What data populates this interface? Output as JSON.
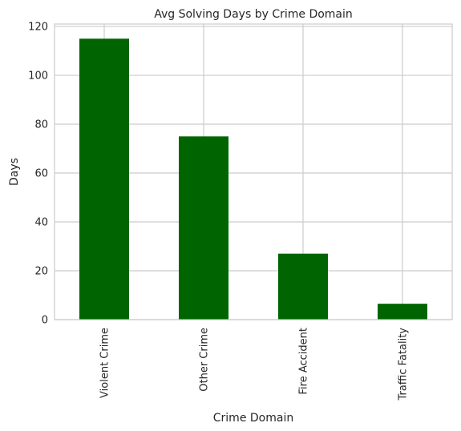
{
  "chart_data": {
    "type": "bar",
    "title": "Avg Solving Days by Crime Domain",
    "xlabel": "Crime Domain",
    "ylabel": "Days",
    "categories": [
      "Violent Crime",
      "Other Crime",
      "Fire Accident",
      "Traffic Fatality"
    ],
    "values": [
      115,
      75,
      27,
      6.5
    ],
    "ylim": [
      0,
      121
    ],
    "yticks": [
      "0",
      "20",
      "40",
      "60",
      "80",
      "100",
      "120"
    ],
    "grid": true,
    "bar_color": "#006400"
  }
}
